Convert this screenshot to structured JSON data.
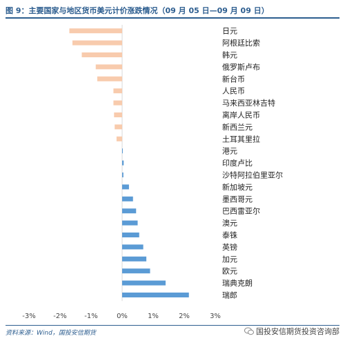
{
  "header": {
    "title": "图 9：主要国家与地区货币美元计价涨跌情况（09 月 05 日—09 月 09 日）"
  },
  "footer": {
    "source": "资料来源：Wind，国投安信期货",
    "watermark": "国投安信期货投资咨询部"
  },
  "colors": {
    "negative": "#f8cbad",
    "positive": "#5b9bd5",
    "title": "#2c5d8f"
  },
  "chart_data": {
    "type": "bar",
    "orientation": "horizontal",
    "categories": [
      "日元",
      "阿根廷比索",
      "韩元",
      "俄罗斯卢布",
      "新台币",
      "人民币",
      "马来西亚林吉特",
      "离岸人民币",
      "新西兰元",
      "土耳其里拉",
      "港元",
      "印度卢比",
      "沙特阿拉伯里亚尔",
      "新加坡元",
      "墨西哥元",
      "巴西雷亚尔",
      "澳元",
      "泰铢",
      "英镑",
      "加元",
      "欧元",
      "瑞典克朗",
      "瑞郎"
    ],
    "values": [
      -1.7,
      -1.6,
      -1.3,
      -0.85,
      -0.8,
      -0.28,
      -0.28,
      -0.26,
      -0.24,
      -0.18,
      0.02,
      0.05,
      0.04,
      0.22,
      0.35,
      0.45,
      0.5,
      0.55,
      0.68,
      0.78,
      0.9,
      1.4,
      2.15
    ],
    "tick_labels": [
      "-3%",
      "-2%",
      "-1%",
      "0%",
      "1%",
      "2%",
      "3%"
    ],
    "xlim": [
      -3,
      3
    ],
    "grid": false,
    "legend": "none"
  }
}
